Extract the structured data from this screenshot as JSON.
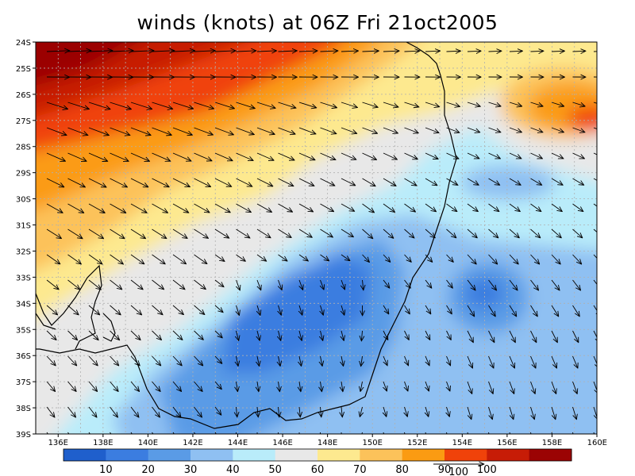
{
  "title": "winds (knots) at 06Z Fri 21oct2005",
  "map": {
    "lon_range": [
      135,
      160
    ],
    "lat_range": [
      -39,
      -24
    ],
    "lat_ticks": [
      "24S",
      "25S",
      "26S",
      "27S",
      "28S",
      "29S",
      "30S",
      "31S",
      "32S",
      "33S",
      "34S",
      "35S",
      "36S",
      "37S",
      "38S",
      "39S"
    ],
    "lon_ticks": [
      "136E",
      "138E",
      "140E",
      "142E",
      "144E",
      "146E",
      "148E",
      "150E",
      "152E",
      "154E",
      "156E",
      "158E",
      "160E"
    ],
    "grid": true,
    "variable": "wind speed (knots) shaded, wind vectors as arrows"
  },
  "colorbar": {
    "colors": [
      "#1f5fcc",
      "#3b7de0",
      "#5a9be6",
      "#8fc0f2",
      "#b9ecfa",
      "#e8e8e8",
      "#fde98f",
      "#fcc25a",
      "#fb9b12",
      "#f0420a",
      "#c71c06",
      "#9b0303"
    ],
    "labels": [
      "10",
      "20",
      "30",
      "40",
      "50",
      "60",
      "70",
      "80",
      "90",
      "100"
    ],
    "reference_arrow_label": "100"
  },
  "colors": {
    "coastline": "#000000",
    "grid": "#b0b0b0"
  }
}
